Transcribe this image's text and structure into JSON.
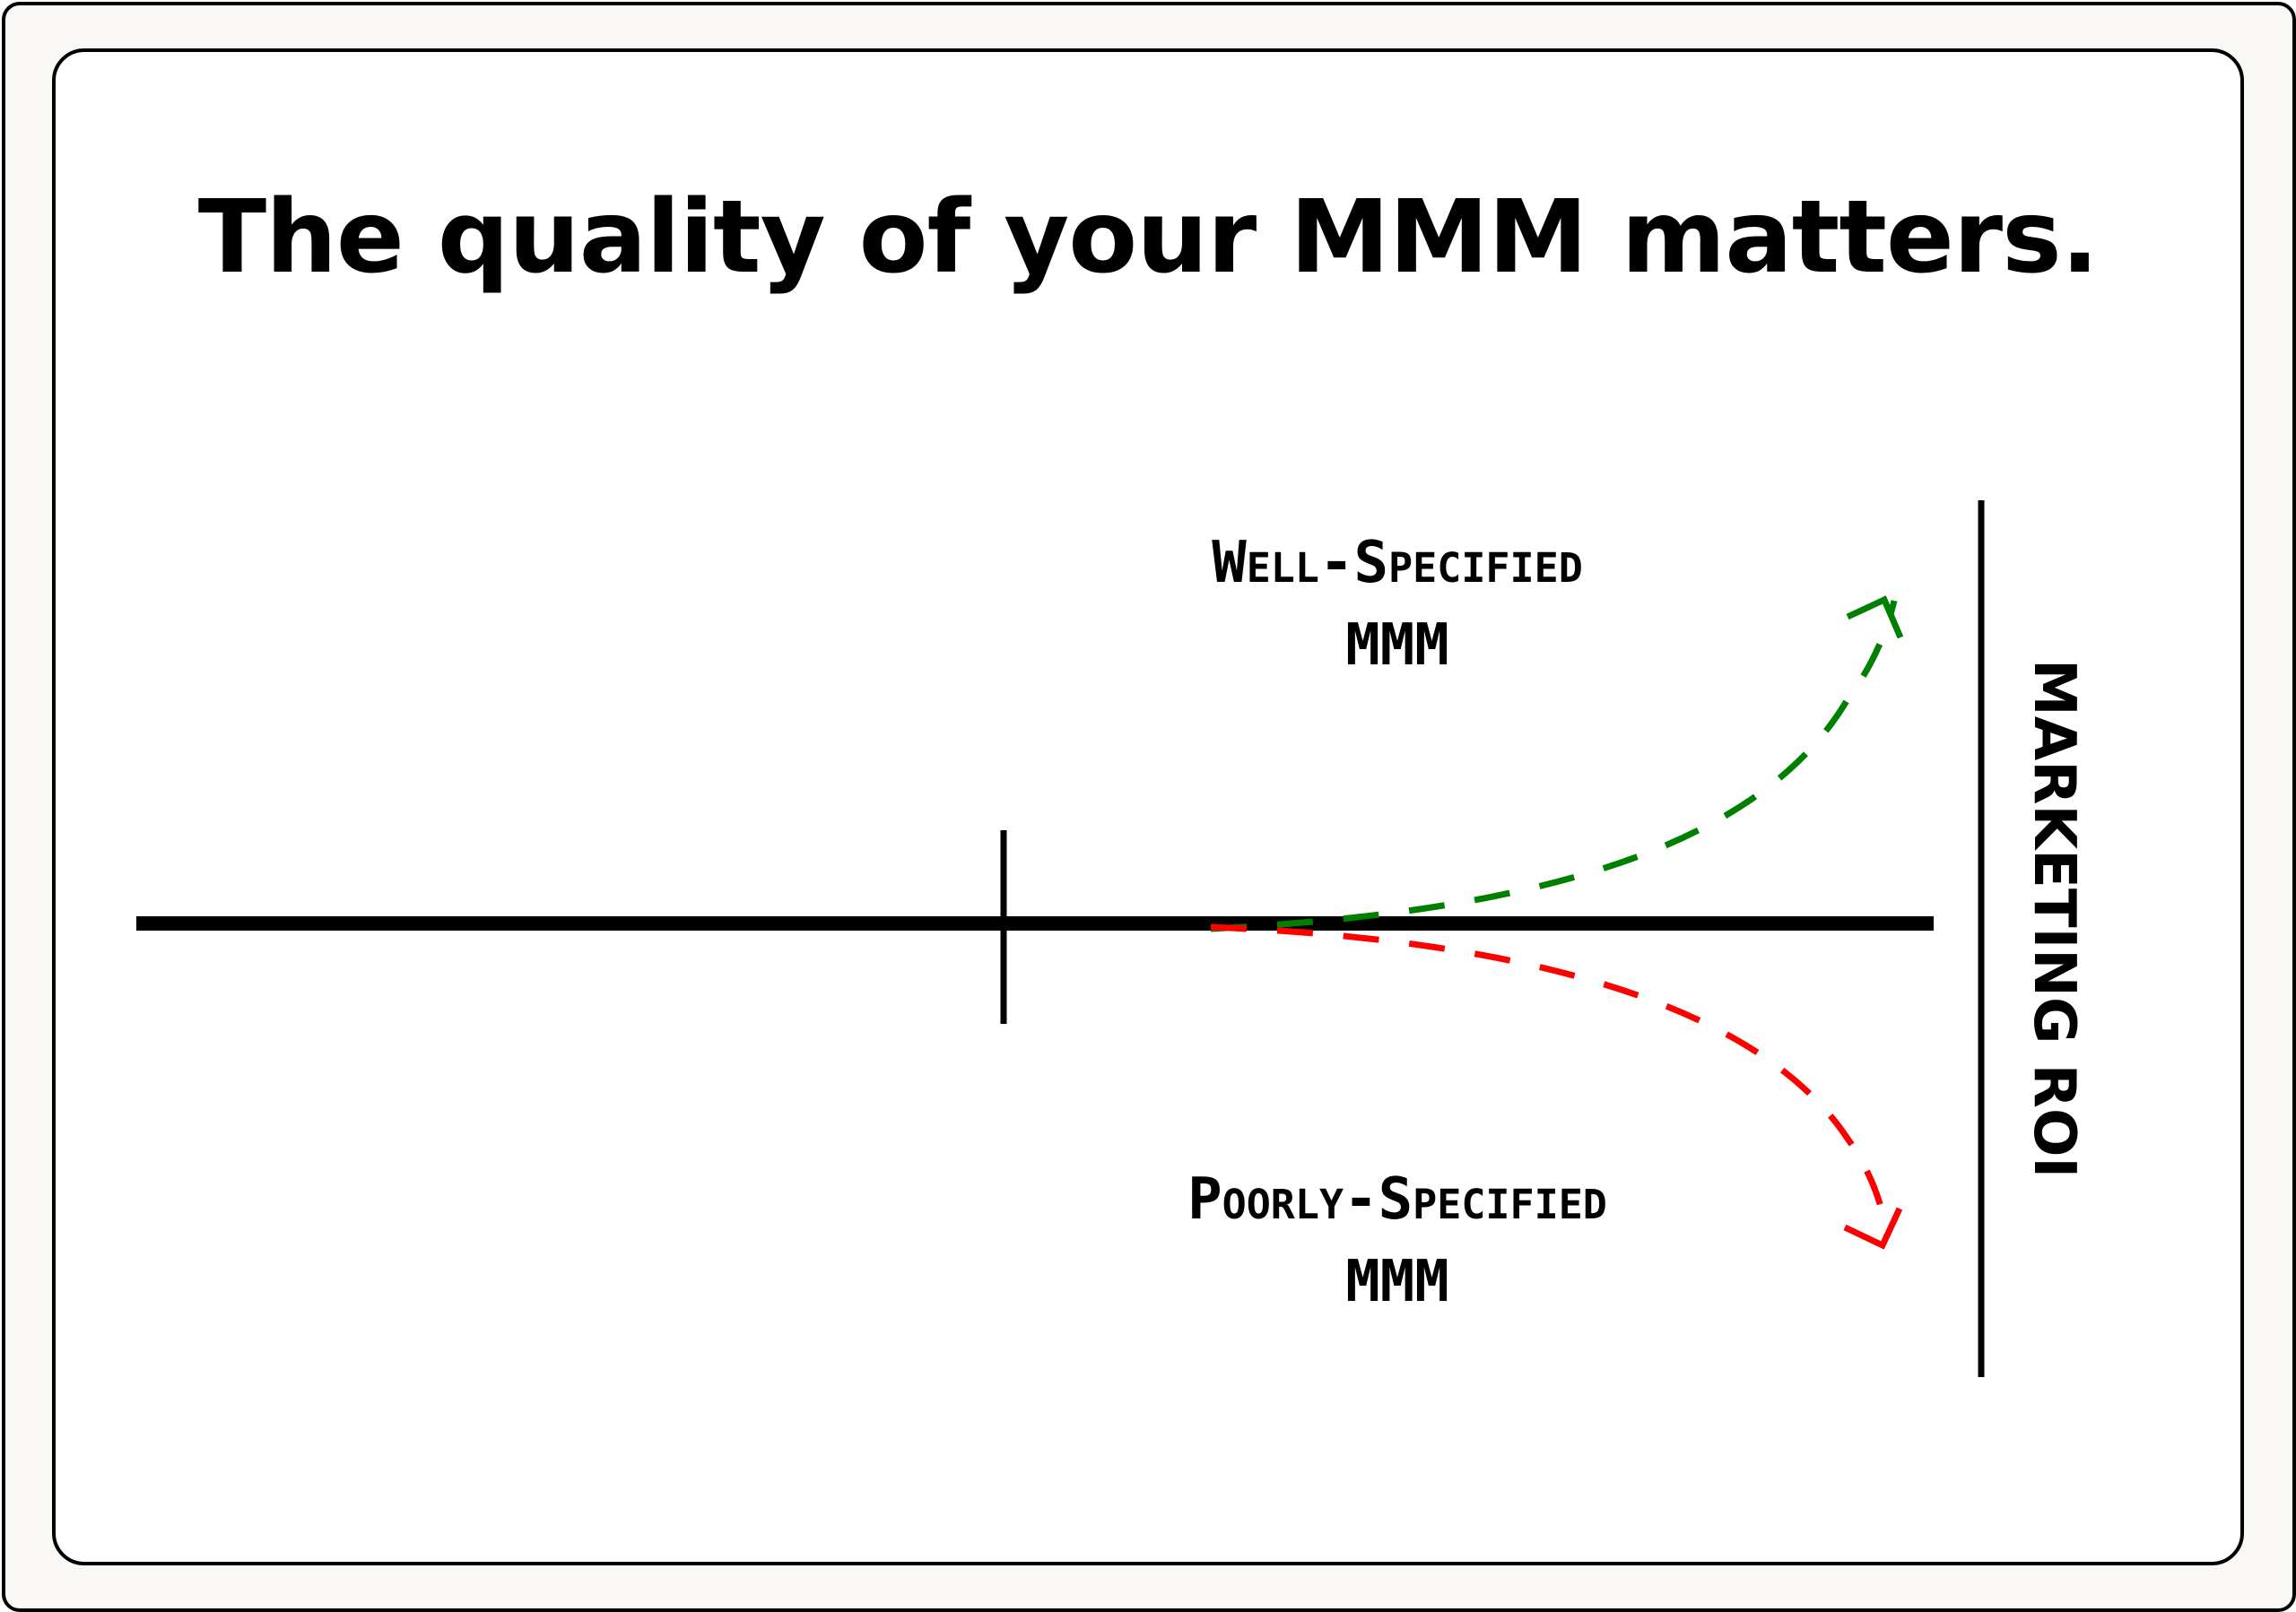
{
  "title": "The quality of your MMM matters.",
  "diagram": {
    "upper_label": {
      "line1": "Well-Specified",
      "line2": "MMM"
    },
    "lower_label": {
      "line1": "Poorly-Specified",
      "line2": "MMM"
    },
    "axis_label": "MARKETING ROI",
    "colors": {
      "well_specified_arrow": "#008000",
      "poorly_specified_arrow": "#ff0000",
      "axis": "#000000",
      "frame_background": "#f9f8f4"
    }
  }
}
